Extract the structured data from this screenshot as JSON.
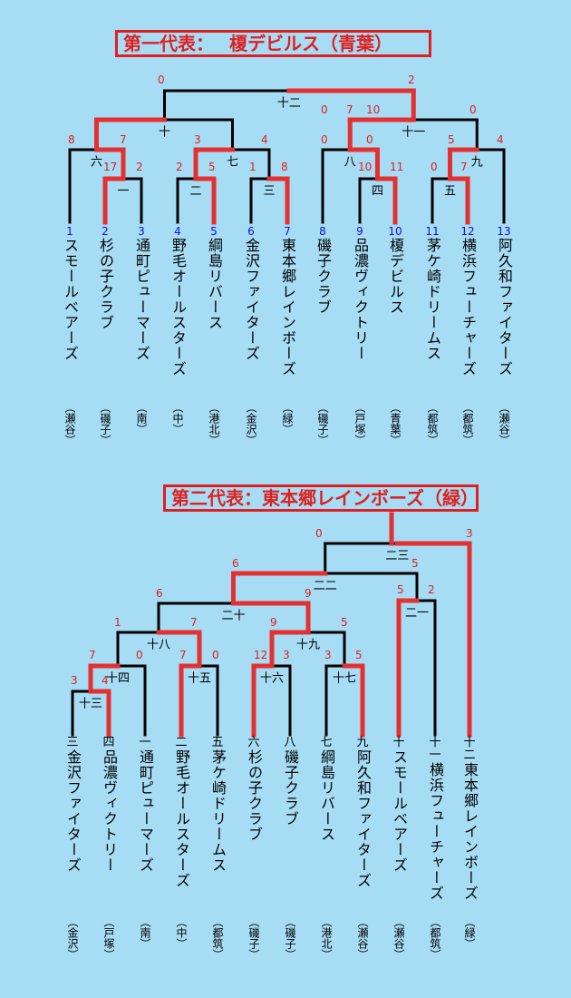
{
  "bracket1": {
    "title": "第一代表：　 榎デビルス（青葉）",
    "teams": [
      {
        "seed": "1",
        "name": "スモールベアーズ",
        "district": "（瀬谷）"
      },
      {
        "seed": "2",
        "name": "杉の子クラブ",
        "district": "（磯子）"
      },
      {
        "seed": "3",
        "name": "通町ピューマーズ",
        "district": "（南）"
      },
      {
        "seed": "4",
        "name": "野毛オールスターズ",
        "district": "（中）"
      },
      {
        "seed": "5",
        "name": "綱島リバース",
        "district": "（港北）"
      },
      {
        "seed": "6",
        "name": "金沢ファイターズ",
        "district": "（金沢）"
      },
      {
        "seed": "7",
        "name": "東本郷レインボーズ",
        "district": "（緑）"
      },
      {
        "seed": "8",
        "name": "磯子クラブ",
        "district": "（磯子）"
      },
      {
        "seed": "9",
        "name": "品濃ヴィクトリー",
        "district": "（戸塚）"
      },
      {
        "seed": "10",
        "name": "榎デビルス",
        "district": "（青葉）"
      },
      {
        "seed": "11",
        "name": "茅ケ崎ドリームス",
        "district": "（都筑）"
      },
      {
        "seed": "12",
        "name": "横浜フューチャーズ",
        "district": "（都筑）"
      },
      {
        "seed": "13",
        "name": "阿久和ファイターズ",
        "district": "（瀬谷）"
      }
    ],
    "matches": [
      "一",
      "二",
      "三",
      "四",
      "五",
      "六",
      "七",
      "八",
      "九",
      "十",
      "十一",
      "十二"
    ],
    "scores": [
      "8",
      "7",
      "17",
      "2",
      "2",
      "5",
      "3",
      "4",
      "1",
      "8",
      "0",
      "0",
      "10",
      "11",
      "0",
      "7",
      "5",
      "4",
      "0",
      "10",
      "7",
      "0",
      "0",
      "2"
    ]
  },
  "bracket2": {
    "title": "第二代表：東本郷レインボーズ（緑）",
    "teams": [
      {
        "seed": "三",
        "name": "金沢ファイターズ",
        "district": "（金沢）"
      },
      {
        "seed": "四",
        "name": "品濃ヴィクトリー",
        "district": "（戸塚）"
      },
      {
        "seed": "一",
        "name": "通町ピューマーズ",
        "district": "（南）"
      },
      {
        "seed": "二",
        "name": "野毛オールスターズ",
        "district": "（中）"
      },
      {
        "seed": "五",
        "name": "茅ケ崎ドリームス",
        "district": "（都筑）"
      },
      {
        "seed": "六",
        "name": "杉の子クラブ",
        "district": "（磯子）"
      },
      {
        "seed": "八",
        "name": "磯子クラブ",
        "district": "（磯子）"
      },
      {
        "seed": "七",
        "name": "綱島リバース",
        "district": "（港北）"
      },
      {
        "seed": "九",
        "name": "阿久和ファイターズ",
        "district": "（瀬谷）"
      },
      {
        "seed": "十",
        "name": "スモールベアーズ",
        "district": "（瀬谷）"
      },
      {
        "seed": "十一",
        "name": "横浜フューチャーズ",
        "district": "（都筑）"
      },
      {
        "seed": "十二",
        "name": "東本郷レインボーズ",
        "district": "（緑）"
      }
    ],
    "matches": [
      "十三",
      "十四",
      "十五",
      "十六",
      "十七",
      "十八",
      "十九",
      "二十",
      "二一",
      "二二",
      "二三"
    ],
    "scores": [
      "3",
      "4",
      "7",
      "0",
      "7",
      "0",
      "12",
      "3",
      "3",
      "5",
      "1",
      "7",
      "9",
      "5",
      "6",
      "9",
      "5",
      "2",
      "6",
      "5",
      "0",
      "3"
    ]
  }
}
